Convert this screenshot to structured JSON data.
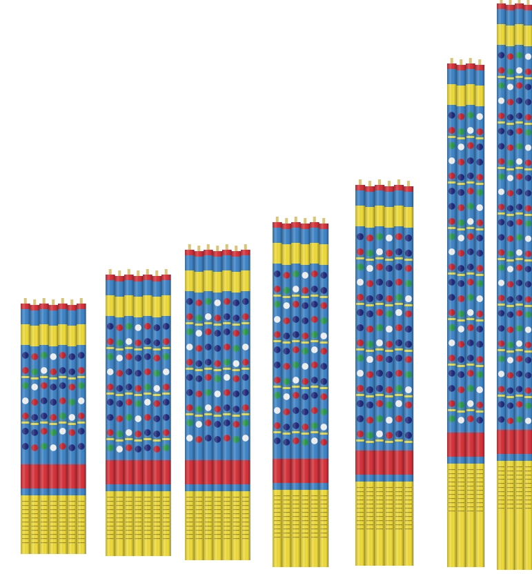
{
  "colors": {
    "background": "#ffffff",
    "tube_blue": "#3f86c9",
    "tube_red": "#d8323a",
    "tube_yellow": "#f1dd3a",
    "ball_navy": "#232a7a",
    "ball_red": "#c8232d",
    "ball_green": "#2c9a4a",
    "ball_white": "#f4f4f4",
    "fuse": "#d8c57a"
  },
  "bundles": [
    {
      "tube_count": 7
    },
    {
      "tube_count": 7
    },
    {
      "tube_count": 7
    },
    {
      "tube_count": 6
    },
    {
      "tube_count": 6
    },
    {
      "tube_count": 4
    },
    {
      "tube_count": 4
    }
  ]
}
